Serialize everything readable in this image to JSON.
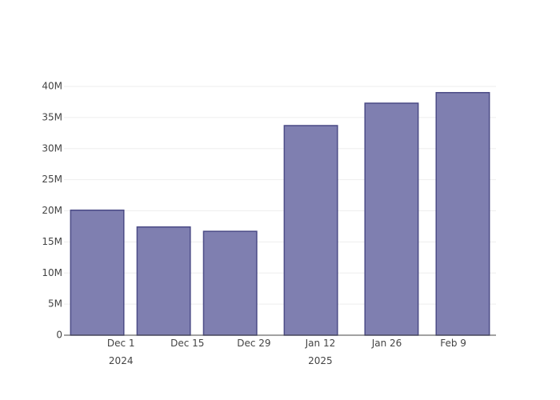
{
  "chart_data": {
    "type": "bar",
    "x": [
      "2024-11-26",
      "2024-12-10",
      "2024-12-24",
      "2025-01-10",
      "2025-01-27",
      "2025-02-11"
    ],
    "values": [
      20100000,
      17400000,
      16700000,
      33700000,
      37300000,
      39000000
    ],
    "color": "#7f7fb0",
    "edge_color": "#4b4b86",
    "xlim": [
      "2024-11-19",
      "2025-02-18"
    ],
    "xticks": [
      {
        "value": "2024-12-01",
        "label": "Dec 1\n2024"
      },
      {
        "value": "2024-12-15",
        "label": "Dec 15"
      },
      {
        "value": "2024-12-29",
        "label": "Dec 29"
      },
      {
        "value": "2025-01-12",
        "label": "Jan 12\n2025"
      },
      {
        "value": "2025-01-26",
        "label": "Jan 26"
      },
      {
        "value": "2025-02-09",
        "label": "Feb 9"
      }
    ],
    "ylim": [
      0,
      40000000
    ],
    "yticks": [
      0,
      {
        "value": 5000000,
        "label": "5M"
      },
      {
        "value": 10000000,
        "label": "10M"
      },
      {
        "value": 15000000,
        "label": "15M"
      },
      {
        "value": 20000000,
        "label": "20M"
      },
      {
        "value": 25000000,
        "label": "25M"
      },
      {
        "value": 30000000,
        "label": "30M"
      },
      {
        "value": 35000000,
        "label": "35M"
      },
      {
        "value": 40000000,
        "label": "40M"
      }
    ],
    "grid": true
  }
}
